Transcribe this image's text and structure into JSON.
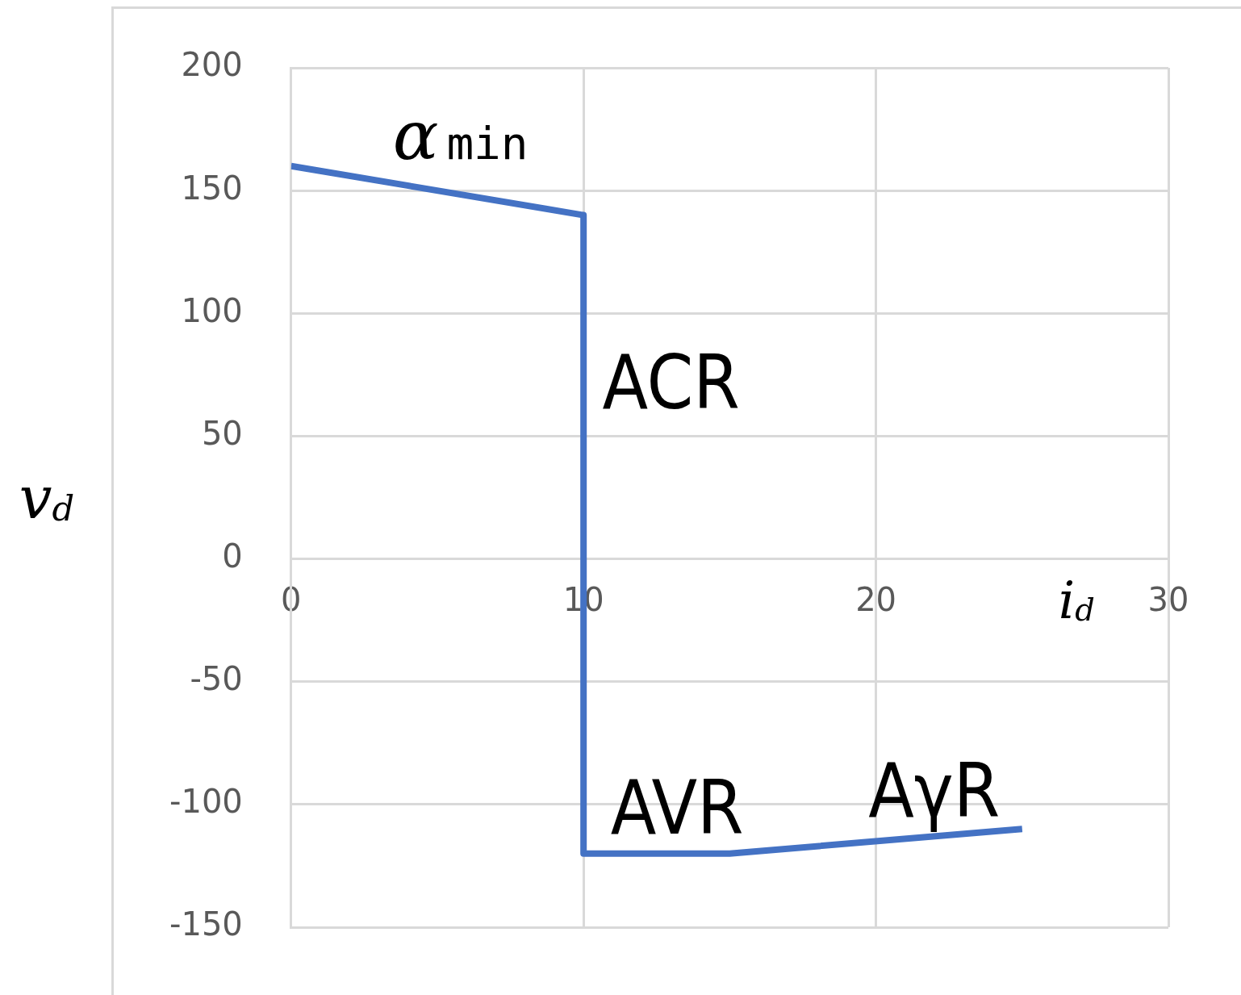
{
  "chart_data": {
    "type": "line",
    "xlabel": "i$_{d}$",
    "ylabel": "v$_{d}$",
    "x": [
      0,
      10,
      10,
      15,
      25
    ],
    "series": [
      {
        "color": "#4472c4",
        "values": [
          160,
          140,
          -120,
          -120,
          -110
        ]
      }
    ],
    "xlim": [
      0,
      30
    ],
    "xticks": [
      0,
      10,
      20,
      30
    ],
    "ylim": [
      -150,
      200
    ],
    "yticks": [
      -150,
      -100,
      -50,
      0,
      50,
      100,
      150,
      200
    ],
    "grid": true,
    "legend": false,
    "marker": "none",
    "line_style": "solid",
    "annotations": [
      "αmin",
      "ACR",
      "AVR",
      "AγR"
    ]
  }
}
